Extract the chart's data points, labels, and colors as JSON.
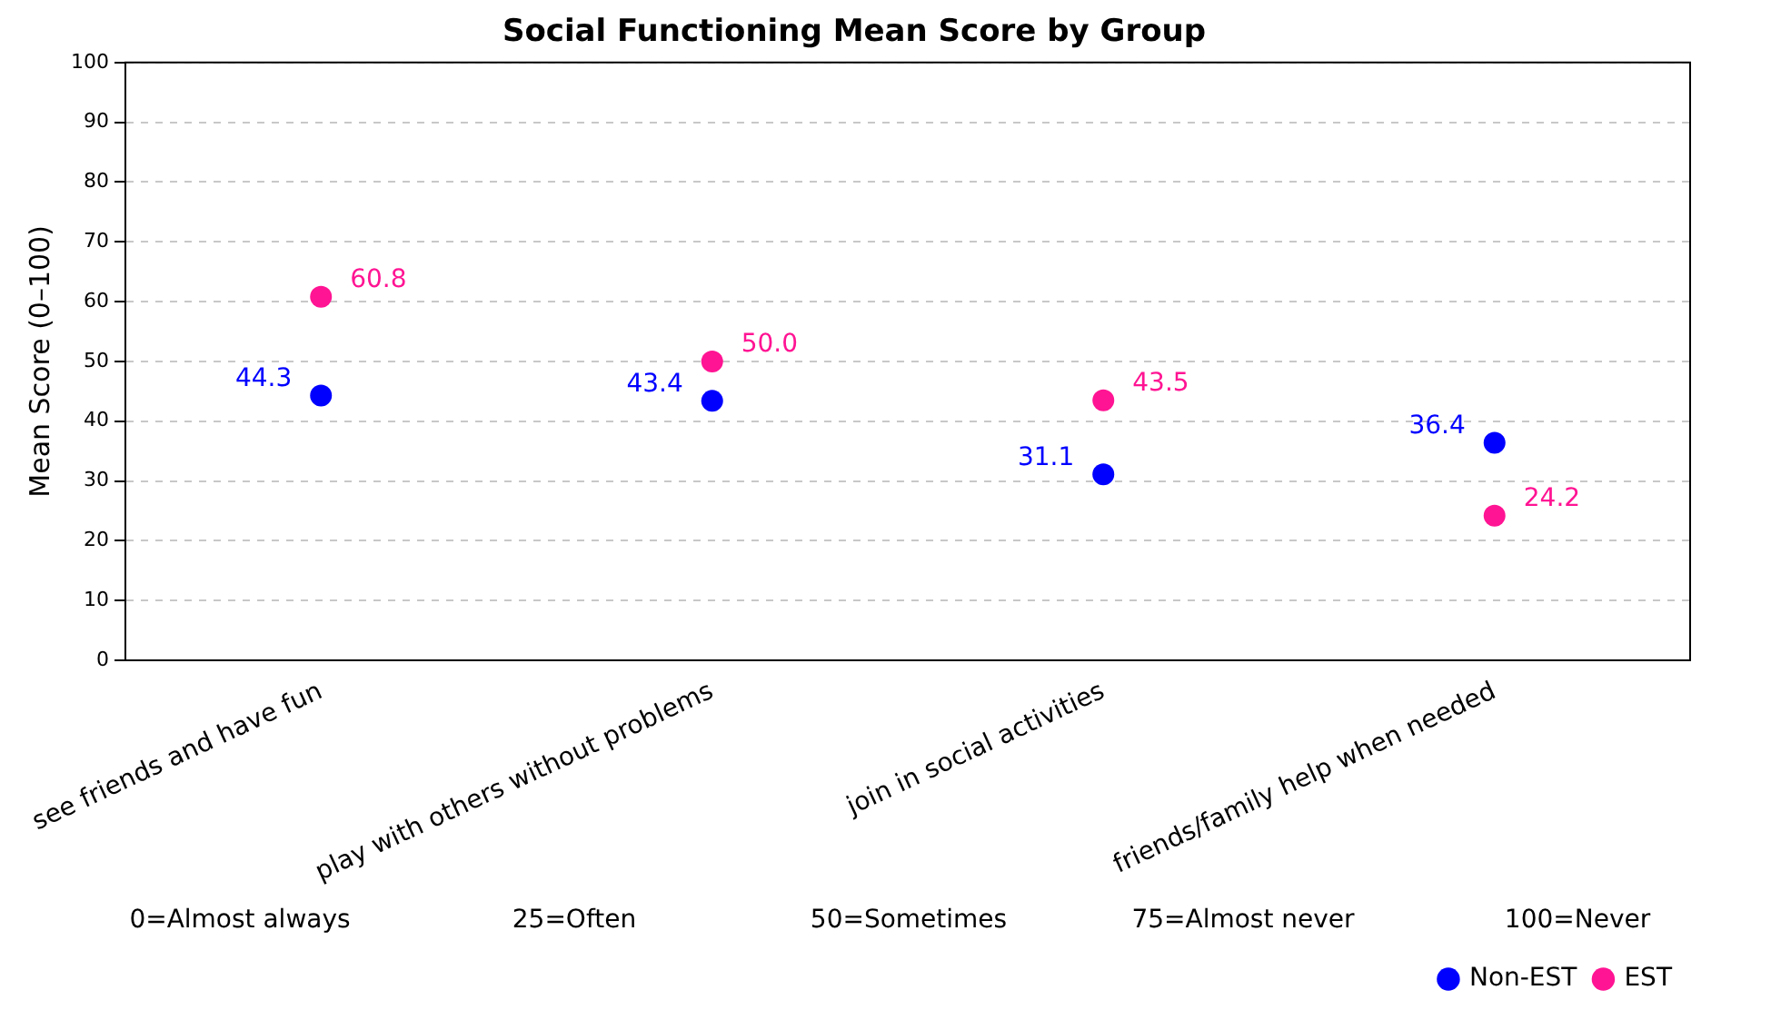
{
  "chart_data": {
    "type": "scatter",
    "title": "Social Functioning Mean Score by Group",
    "ylabel": "Mean Score (0–100)",
    "categories": [
      "see friends and have fun",
      "play with others without problems",
      "join in social activities",
      "friends/family help when needed"
    ],
    "series": [
      {
        "name": "Non-EST",
        "color": "#0000ff",
        "values": [
          44.3,
          43.4,
          31.1,
          36.4
        ],
        "value_labels": [
          "44.3",
          "43.4",
          "31.1",
          "36.4"
        ]
      },
      {
        "name": "EST",
        "color": "#ff1493",
        "values": [
          60.8,
          50.0,
          43.5,
          24.2
        ],
        "value_labels": [
          "60.8",
          "50.0",
          "43.5",
          "24.2"
        ]
      }
    ],
    "ylim": [
      0,
      100
    ],
    "yticks": [
      0,
      10,
      20,
      30,
      40,
      50,
      60,
      70,
      80,
      90,
      100
    ],
    "grid": "y",
    "legend": "bottom right",
    "marker": "circle",
    "annotations": [
      "0=Almost always",
      "25=Often",
      "50=Sometimes",
      "75=Almost never",
      "100=Never"
    ]
  }
}
